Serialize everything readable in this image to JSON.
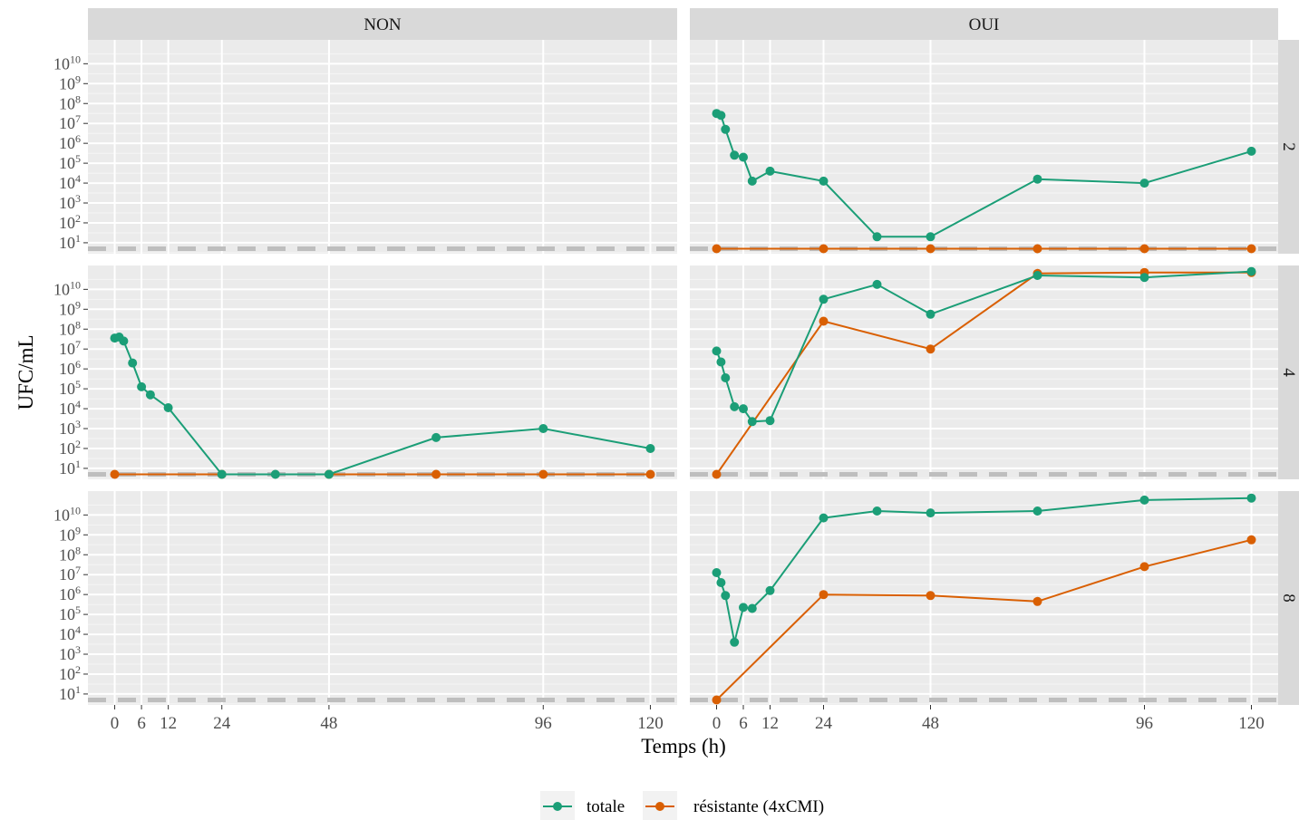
{
  "chart_data": {
    "type": "line",
    "facet_cols": [
      "NON",
      "OUI"
    ],
    "facet_rows": [
      "2",
      "4",
      "8"
    ],
    "xlabel": "Temps (h)",
    "ylabel": "UFC/mL",
    "x_ticks": [
      0,
      6,
      12,
      24,
      48,
      96,
      120
    ],
    "x_range": [
      -6,
      126
    ],
    "y_scale": "log10",
    "y_ticks": [
      {
        "value": 1,
        "base": "10",
        "exp": "1"
      },
      {
        "value": 2,
        "base": "10",
        "exp": "2"
      },
      {
        "value": 3,
        "base": "10",
        "exp": "3"
      },
      {
        "value": 4,
        "base": "10",
        "exp": "4"
      },
      {
        "value": 5,
        "base": "10",
        "exp": "5"
      },
      {
        "value": 6,
        "base": "10",
        "exp": "6"
      },
      {
        "value": 7,
        "base": "10",
        "exp": "7"
      },
      {
        "value": 8,
        "base": "10",
        "exp": "8"
      },
      {
        "value": 9,
        "base": "10",
        "exp": "9"
      },
      {
        "value": 10,
        "base": "10",
        "exp": "10"
      }
    ],
    "y_range_log10": [
      0.45,
      11.2
    ],
    "detection_limit_log10": 0.7,
    "grid": true,
    "legend_position": "bottom",
    "series": [
      {
        "name": "totale",
        "color": "#1B9E77"
      },
      {
        "name": "résistante (4xCMI)",
        "color": "#D95F02"
      }
    ],
    "panels": [
      {
        "col": "NON",
        "row": "2",
        "totale": [],
        "resistante": []
      },
      {
        "col": "NON",
        "row": "4",
        "totale": [
          [
            0,
            7.55
          ],
          [
            1,
            7.6
          ],
          [
            2,
            7.4
          ],
          [
            4,
            6.3
          ],
          [
            6,
            5.1
          ],
          [
            8,
            4.7
          ],
          [
            12,
            4.05
          ],
          [
            24,
            0.7
          ],
          [
            36,
            0.7
          ],
          [
            48,
            0.7
          ],
          [
            72,
            2.55
          ],
          [
            96,
            3.0
          ],
          [
            120,
            2.0
          ]
        ],
        "resistante": [
          [
            0,
            0.7
          ],
          [
            24,
            0.7
          ],
          [
            48,
            0.7
          ],
          [
            72,
            0.7
          ],
          [
            96,
            0.7
          ],
          [
            120,
            0.7
          ]
        ]
      },
      {
        "col": "NON",
        "row": "8",
        "totale": [],
        "resistante": []
      },
      {
        "col": "OUI",
        "row": "2",
        "totale": [
          [
            0,
            7.5
          ],
          [
            1,
            7.4
          ],
          [
            2,
            6.7
          ],
          [
            4,
            5.4
          ],
          [
            6,
            5.3
          ],
          [
            8,
            4.1
          ],
          [
            12,
            4.6
          ],
          [
            24,
            4.1
          ],
          [
            36,
            1.3
          ],
          [
            48,
            1.3
          ],
          [
            72,
            4.2
          ],
          [
            96,
            4.0
          ],
          [
            120,
            5.6
          ]
        ],
        "resistante": [
          [
            0,
            0.7
          ],
          [
            24,
            0.7
          ],
          [
            48,
            0.7
          ],
          [
            72,
            0.7
          ],
          [
            96,
            0.7
          ],
          [
            120,
            0.7
          ]
        ]
      },
      {
        "col": "OUI",
        "row": "4",
        "totale": [
          [
            0,
            6.9
          ],
          [
            1,
            6.35
          ],
          [
            2,
            5.55
          ],
          [
            4,
            4.1
          ],
          [
            6,
            4.0
          ],
          [
            8,
            3.35
          ],
          [
            12,
            3.4
          ],
          [
            24,
            9.5
          ],
          [
            36,
            10.25
          ],
          [
            48,
            8.75
          ],
          [
            72,
            10.7
          ],
          [
            96,
            10.6
          ],
          [
            120,
            10.9
          ]
        ],
        "resistante": [
          [
            0,
            0.7
          ],
          [
            24,
            8.4
          ],
          [
            48,
            7.0
          ],
          [
            72,
            10.8
          ],
          [
            96,
            10.85
          ],
          [
            120,
            10.85
          ]
        ]
      },
      {
        "col": "OUI",
        "row": "8",
        "totale": [
          [
            0,
            7.1
          ],
          [
            1,
            6.6
          ],
          [
            2,
            5.95
          ],
          [
            4,
            3.6
          ],
          [
            6,
            5.35
          ],
          [
            8,
            5.3
          ],
          [
            12,
            6.2
          ],
          [
            24,
            9.85
          ],
          [
            36,
            10.2
          ],
          [
            48,
            10.1
          ],
          [
            72,
            10.2
          ],
          [
            96,
            10.75
          ],
          [
            120,
            10.85
          ]
        ],
        "resistante": [
          [
            0,
            0.7
          ],
          [
            24,
            6.0
          ],
          [
            48,
            5.95
          ],
          [
            72,
            5.65
          ],
          [
            96,
            7.4
          ],
          [
            120,
            8.75
          ]
        ]
      }
    ]
  }
}
